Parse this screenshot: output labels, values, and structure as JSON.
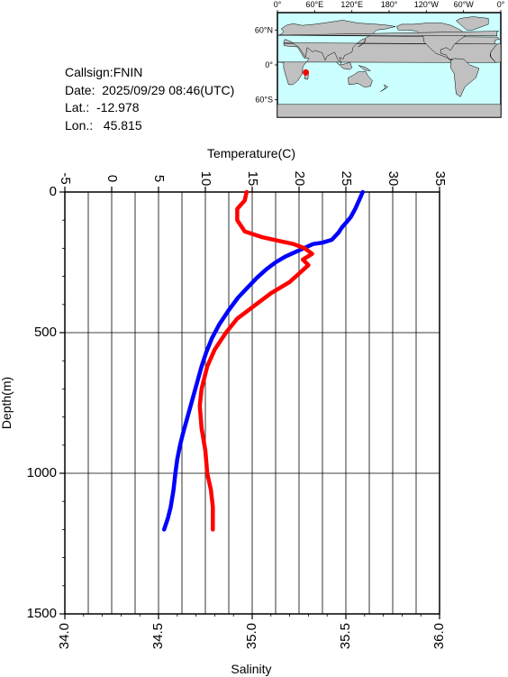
{
  "info": {
    "callsign": "Callsign:FNIN",
    "date": "Date:  2025/09/29 08:46(UTC)",
    "lat": "Lat.:  -12.978",
    "lon": "Lon.:   45.815"
  },
  "map": {
    "top_ticks": [
      "0°",
      "60°E",
      "120°E",
      "180°",
      "120°W",
      "60°W",
      "0°"
    ],
    "left_ticks": [
      "60°N",
      "0°",
      "60°S"
    ],
    "ocean_color": "#ccffff",
    "land_color": "#c0c0c0",
    "marker_color": "#ff0000",
    "marker_lon": 45.815,
    "marker_lat": -12.978
  },
  "chart_data": {
    "type": "line",
    "title": "",
    "ylabel": "Depth(m)",
    "x_top_label": "Temperature(C)",
    "x_bottom_label": "Salinity",
    "ylim": [
      1500,
      0
    ],
    "yticks": [
      "0",
      "500",
      "1000",
      "1500"
    ],
    "yvalues": [
      0,
      500,
      1000,
      1500
    ],
    "temperature_lim": [
      -5,
      35
    ],
    "temperature_ticks": [
      "-5",
      "0",
      "5",
      "10",
      "15",
      "20",
      "25",
      "30",
      "35"
    ],
    "temperature_values": [
      -5,
      0,
      5,
      10,
      15,
      20,
      25,
      30,
      35
    ],
    "salinity_lim": [
      34.0,
      36.0
    ],
    "salinity_ticks": [
      "34.0",
      "34.5",
      "35.0",
      "35.5",
      "36.0"
    ],
    "salinity_values": [
      34.0,
      34.5,
      35.0,
      35.5,
      36.0
    ],
    "grid": true,
    "series": [
      {
        "name": "Temperature",
        "color": "#0000ff",
        "axis": "temperature",
        "points": [
          [
            26.8,
            0
          ],
          [
            26.4,
            30
          ],
          [
            26.0,
            60
          ],
          [
            25.5,
            90
          ],
          [
            25.0,
            110
          ],
          [
            24.6,
            125
          ],
          [
            24.2,
            145
          ],
          [
            23.5,
            170
          ],
          [
            22.5,
            180
          ],
          [
            21.5,
            185
          ],
          [
            20.5,
            200
          ],
          [
            19.5,
            215
          ],
          [
            18.5,
            230
          ],
          [
            17.5,
            250
          ],
          [
            16.5,
            275
          ],
          [
            15.5,
            305
          ],
          [
            14.5,
            340
          ],
          [
            13.5,
            375
          ],
          [
            12.5,
            420
          ],
          [
            11.5,
            470
          ],
          [
            10.7,
            520
          ],
          [
            10.1,
            570
          ],
          [
            9.6,
            620
          ],
          [
            9.1,
            680
          ],
          [
            8.6,
            740
          ],
          [
            8.1,
            800
          ],
          [
            7.6,
            860
          ],
          [
            7.3,
            900
          ],
          [
            7.0,
            950
          ],
          [
            6.8,
            1000
          ],
          [
            6.6,
            1060
          ],
          [
            6.3,
            1120
          ],
          [
            6.0,
            1160
          ],
          [
            5.6,
            1200
          ]
        ]
      },
      {
        "name": "Salinity",
        "axis": "salinity",
        "color": "#ff0000",
        "points": [
          [
            34.97,
            0
          ],
          [
            34.96,
            30
          ],
          [
            34.92,
            60
          ],
          [
            34.92,
            100
          ],
          [
            34.96,
            140
          ],
          [
            35.05,
            160
          ],
          [
            35.15,
            175
          ],
          [
            35.22,
            185
          ],
          [
            35.28,
            200
          ],
          [
            35.32,
            220
          ],
          [
            35.27,
            240
          ],
          [
            35.3,
            260
          ],
          [
            35.25,
            290
          ],
          [
            35.2,
            320
          ],
          [
            35.1,
            360
          ],
          [
            35.0,
            410
          ],
          [
            34.92,
            450
          ],
          [
            34.86,
            500
          ],
          [
            34.8,
            560
          ],
          [
            34.76,
            620
          ],
          [
            34.73,
            700
          ],
          [
            34.72,
            760
          ],
          [
            34.73,
            840
          ],
          [
            34.75,
            920
          ],
          [
            34.76,
            1000
          ],
          [
            34.78,
            1060
          ],
          [
            34.79,
            1120
          ],
          [
            34.79,
            1200
          ]
        ]
      }
    ]
  }
}
